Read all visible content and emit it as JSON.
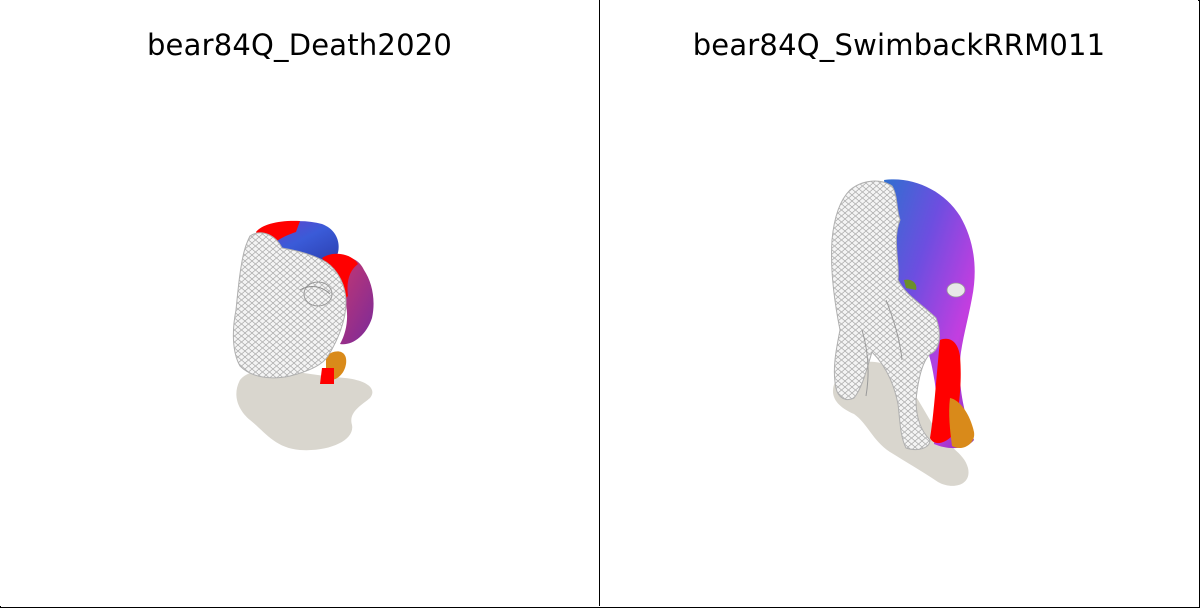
{
  "panels": [
    {
      "title": "bear84Q_Death2020"
    },
    {
      "title": "bear84Q_SwimbackRRM011"
    }
  ],
  "colors": {
    "background": "#ffffff",
    "border": "#000000",
    "shadow": "#d9d6ce",
    "mesh_wire": "#c8c8c8",
    "surface_blue": "#3a4fd6",
    "surface_purple": "#9b3ad8",
    "surface_magenta": "#c23bd9",
    "surface_red": "#ff0000",
    "surface_orange": "#d98a1a"
  }
}
